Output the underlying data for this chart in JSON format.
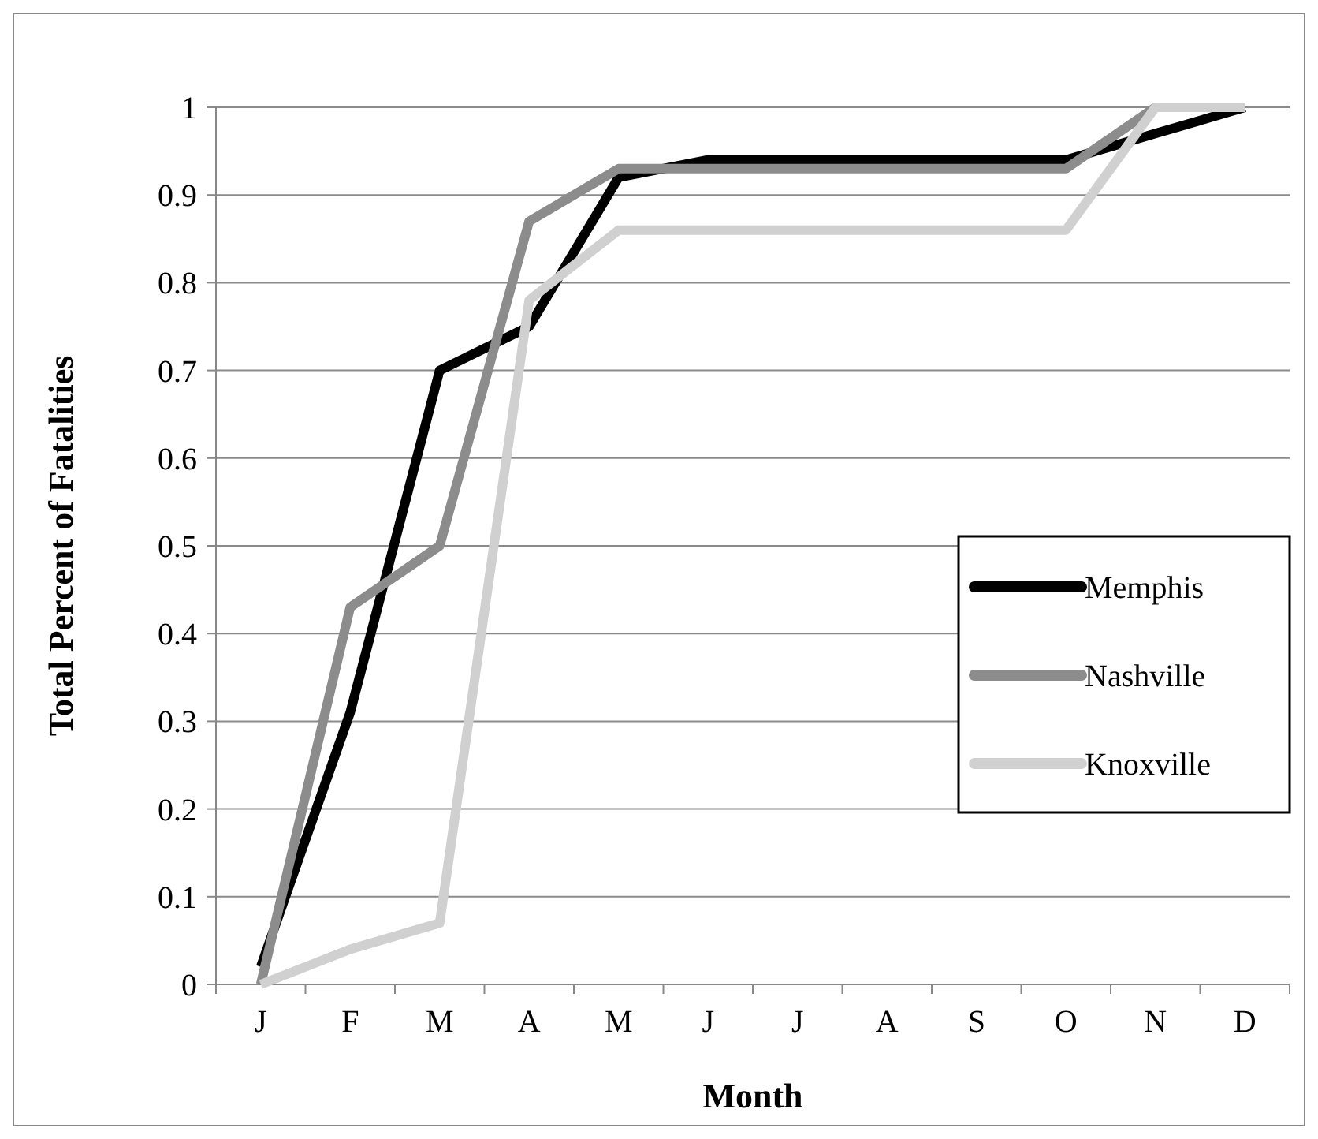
{
  "chart_data": {
    "type": "line",
    "xlabel": "Month",
    "ylabel": "Total Percent of Fatalities",
    "categories": [
      "J",
      "F",
      "M",
      "A",
      "M",
      "J",
      "J",
      "A",
      "S",
      "O",
      "N",
      "D"
    ],
    "ylim": [
      0,
      1
    ],
    "yticks": [
      0,
      0.1,
      0.2,
      0.3,
      0.4,
      0.5,
      0.6,
      0.7,
      0.8,
      0.9,
      1
    ],
    "grid": "y",
    "legend": "right",
    "marker": "none",
    "line_style": "solid",
    "series": [
      {
        "name": "Memphis",
        "color": "#000000",
        "values": [
          0.02,
          0.31,
          0.7,
          0.75,
          0.92,
          0.94,
          0.94,
          0.94,
          0.94,
          0.94,
          0.97,
          1
        ]
      },
      {
        "name": "Nashville",
        "color": "#8c8c8c",
        "values": [
          0,
          0.43,
          0.5,
          0.87,
          0.93,
          0.93,
          0.93,
          0.93,
          0.93,
          0.93,
          1,
          1
        ]
      },
      {
        "name": "Knoxville",
        "color": "#d0d0d0",
        "values": [
          0,
          0.04,
          0.07,
          0.78,
          0.86,
          0.86,
          0.86,
          0.86,
          0.86,
          0.86,
          1,
          1
        ]
      }
    ]
  }
}
